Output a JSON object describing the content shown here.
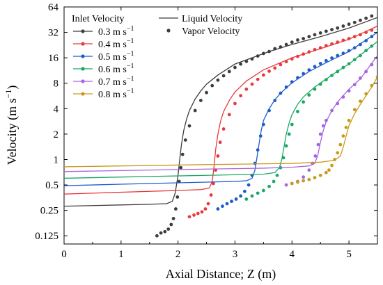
{
  "chart_data": {
    "type": "line",
    "xlabel": "Axial Distance; Z (m)",
    "ylabel": "Velocity (m s",
    "ylabel_sup": "−1",
    "ylabel_close": ")",
    "y_scale": "log2",
    "xlim": [
      0,
      5.5
    ],
    "ylim": [
      0.1,
      64
    ],
    "x_ticks": [
      "0",
      "1",
      "2",
      "3",
      "4",
      "5"
    ],
    "x_tick_values": [
      0,
      1,
      2,
      3,
      4,
      5
    ],
    "y_ticks": [
      "0.125",
      "0.25",
      "0.5",
      "1",
      "2",
      "4",
      "8",
      "16",
      "32",
      "64"
    ],
    "y_tick_values": [
      0.125,
      0.25,
      0.5,
      1,
      2,
      4,
      8,
      16,
      32,
      64
    ],
    "grid": false,
    "legend": {
      "placement": "top-left",
      "header_left": "Inlet Velocity",
      "header_liquid": "Liquid Velocity",
      "header_vapor": "Vapor Velocity",
      "unit_base": "m s",
      "unit_sup": "−1"
    },
    "series": [
      {
        "name": "0.3",
        "color": "#3d3d3d",
        "liquid": {
          "x": [
            0,
            0.5,
            1,
            1.5,
            1.8,
            1.9,
            1.95,
            2.0,
            2.03,
            2.06,
            2.1,
            2.15,
            2.2,
            2.3,
            2.4,
            2.5,
            2.7,
            3.0,
            3.3,
            3.6,
            4.0,
            4.5,
            5.0,
            5.5
          ],
          "y": [
            0.28,
            0.285,
            0.29,
            0.295,
            0.3,
            0.32,
            0.4,
            0.65,
            1.0,
            1.5,
            2.2,
            3.0,
            3.8,
            5.2,
            6.5,
            7.8,
            10.0,
            13.5,
            16.0,
            19.0,
            23.0,
            28.5,
            36.0,
            48.0
          ]
        },
        "vapor": {
          "x": [
            1.63,
            1.7,
            1.77,
            1.83,
            1.88,
            1.92,
            1.96,
            1.99,
            2.02,
            2.05,
            2.08,
            2.13,
            2.2,
            2.3,
            2.4,
            2.5,
            2.6,
            2.7,
            2.8,
            2.9,
            3.0,
            3.1,
            3.2,
            3.3,
            3.4,
            3.5,
            3.6,
            3.7,
            3.8,
            3.9,
            4.0,
            4.1,
            4.2,
            4.3,
            4.4,
            4.5,
            4.6,
            4.7,
            4.8,
            4.9,
            5.0,
            5.1,
            5.2,
            5.3,
            5.4
          ],
          "y": [
            0.125,
            0.135,
            0.14,
            0.15,
            0.17,
            0.2,
            0.26,
            0.36,
            0.55,
            0.8,
            1.15,
            1.7,
            2.5,
            3.8,
            5.0,
            6.2,
            7.5,
            8.7,
            9.8,
            11.0,
            12.3,
            13.5,
            14.5,
            15.5,
            16.8,
            18.0,
            19.0,
            20.5,
            21.5,
            23.0,
            24.5,
            26.0,
            27.0,
            28.5,
            30.0,
            31.5,
            33.0,
            34.5,
            36.0,
            38.0,
            40.0,
            42.0,
            44.5,
            47.0,
            50.0
          ]
        }
      },
      {
        "name": "0.4",
        "color": "#e8393d",
        "liquid": {
          "x": [
            0,
            0.5,
            1,
            1.5,
            2.0,
            2.4,
            2.55,
            2.6,
            2.63,
            2.66,
            2.7,
            2.75,
            2.8,
            2.9,
            3.0,
            3.2,
            3.5,
            4.0,
            4.5,
            5.0,
            5.5
          ],
          "y": [
            0.39,
            0.4,
            0.41,
            0.42,
            0.43,
            0.44,
            0.46,
            0.55,
            0.8,
            1.3,
            2.0,
            2.9,
            3.7,
            5.0,
            6.3,
            8.5,
            11.5,
            16.0,
            20.5,
            26.5,
            38.0
          ]
        },
        "vapor": {
          "x": [
            2.2,
            2.28,
            2.35,
            2.42,
            2.48,
            2.53,
            2.58,
            2.62,
            2.66,
            2.7,
            2.74,
            2.8,
            2.9,
            3.0,
            3.1,
            3.2,
            3.3,
            3.4,
            3.5,
            3.6,
            3.7,
            3.8,
            3.9,
            4.0,
            4.1,
            4.2,
            4.3,
            4.4,
            4.5,
            4.6,
            4.7,
            4.8,
            4.9,
            5.0,
            5.1,
            5.2,
            5.3,
            5.4
          ],
          "y": [
            0.21,
            0.22,
            0.23,
            0.24,
            0.26,
            0.3,
            0.38,
            0.52,
            0.75,
            1.1,
            1.6,
            2.3,
            3.4,
            4.6,
            5.7,
            6.8,
            7.8,
            8.9,
            10.0,
            11.1,
            12.1,
            13.3,
            14.4,
            15.5,
            16.6,
            17.7,
            18.8,
            20.0,
            21.0,
            22.3,
            23.4,
            24.5,
            25.8,
            27.0,
            28.5,
            30.0,
            32.0,
            34.0
          ]
        }
      },
      {
        "name": "0.5",
        "color": "#1e5ccc",
        "liquid": {
          "x": [
            0,
            0.5,
            1,
            1.5,
            2.0,
            2.5,
            3.0,
            3.2,
            3.3,
            3.35,
            3.38,
            3.42,
            3.46,
            3.5,
            3.6,
            3.7,
            3.8,
            4.0,
            4.3,
            4.6,
            5.0,
            5.5
          ],
          "y": [
            0.49,
            0.5,
            0.51,
            0.52,
            0.53,
            0.54,
            0.55,
            0.56,
            0.6,
            0.75,
            1.0,
            1.5,
            2.2,
            2.9,
            4.0,
            5.1,
            6.1,
            8.1,
            11.0,
            14.0,
            19.0,
            32.0
          ]
        },
        "vapor": {
          "x": [
            2.7,
            2.78,
            2.86,
            2.94,
            3.02,
            3.1,
            3.17,
            3.24,
            3.3,
            3.35,
            3.4,
            3.45,
            3.5,
            3.6,
            3.7,
            3.8,
            3.9,
            4.0,
            4.1,
            4.2,
            4.3,
            4.4,
            4.5,
            4.6,
            4.7,
            4.8,
            4.9,
            5.0,
            5.1,
            5.2,
            5.3,
            5.4
          ],
          "y": [
            0.26,
            0.28,
            0.3,
            0.32,
            0.34,
            0.37,
            0.42,
            0.5,
            0.65,
            0.9,
            1.3,
            1.9,
            2.6,
            3.8,
            5.0,
            6.1,
            7.2,
            8.3,
            9.3,
            10.4,
            11.5,
            12.6,
            13.7,
            14.8,
            15.9,
            17.0,
            18.1,
            19.4,
            21.0,
            23.0,
            25.5,
            28.5
          ]
        }
      },
      {
        "name": "0.6",
        "color": "#1aa864",
        "liquid": {
          "x": [
            0,
            0.5,
            1,
            1.5,
            2.0,
            2.5,
            3.0,
            3.5,
            3.7,
            3.78,
            3.82,
            3.86,
            3.9,
            3.95,
            4.0,
            4.1,
            4.2,
            4.4,
            4.7,
            5.0,
            5.5
          ],
          "y": [
            0.6,
            0.61,
            0.62,
            0.63,
            0.64,
            0.65,
            0.66,
            0.67,
            0.7,
            0.8,
            1.0,
            1.4,
            2.0,
            2.7,
            3.4,
            4.5,
            5.5,
            7.2,
            10.0,
            13.5,
            25.0
          ]
        },
        "vapor": {
          "x": [
            3.2,
            3.3,
            3.4,
            3.5,
            3.6,
            3.68,
            3.74,
            3.8,
            3.85,
            3.9,
            3.95,
            4.0,
            4.1,
            4.2,
            4.3,
            4.4,
            4.5,
            4.6,
            4.7,
            4.8,
            4.9,
            5.0,
            5.1,
            5.2,
            5.3,
            5.4
          ],
          "y": [
            0.34,
            0.37,
            0.4,
            0.43,
            0.48,
            0.55,
            0.65,
            0.8,
            1.05,
            1.45,
            2.0,
            2.6,
            3.7,
            4.8,
            5.8,
            6.8,
            7.8,
            8.8,
            9.9,
            11.0,
            12.3,
            13.6,
            15.2,
            17.0,
            19.5,
            22.0
          ]
        }
      },
      {
        "name": "0.7",
        "color": "#a764e0",
        "liquid": {
          "x": [
            0,
            0.5,
            1,
            1.5,
            2.0,
            2.5,
            3.0,
            3.5,
            4.0,
            4.3,
            4.4,
            4.45,
            4.5,
            4.55,
            4.6,
            4.7,
            4.8,
            5.0,
            5.2,
            5.5
          ],
          "y": [
            0.72,
            0.73,
            0.74,
            0.75,
            0.76,
            0.77,
            0.78,
            0.79,
            0.81,
            0.84,
            0.9,
            1.1,
            1.6,
            2.2,
            2.8,
            3.8,
            4.8,
            6.8,
            9.0,
            17.0
          ]
        },
        "vapor": {
          "x": [
            3.9,
            4.0,
            4.1,
            4.2,
            4.3,
            4.36,
            4.41,
            4.46,
            4.5,
            4.55,
            4.6,
            4.7,
            4.8,
            4.9,
            5.0,
            5.1,
            5.2,
            5.3,
            5.4,
            5.5
          ],
          "y": [
            0.5,
            0.52,
            0.55,
            0.62,
            0.75,
            0.9,
            1.1,
            1.5,
            2.0,
            2.5,
            2.9,
            3.8,
            4.6,
            5.5,
            6.5,
            7.7,
            9.2,
            11.0,
            13.3,
            16.0
          ]
        }
      },
      {
        "name": "0.8",
        "color": "#c99a1a",
        "liquid": {
          "x": [
            0,
            0.5,
            1,
            1.5,
            2.0,
            2.5,
            3.0,
            3.5,
            4.0,
            4.5,
            4.75,
            4.85,
            4.9,
            4.95,
            5.0,
            5.1,
            5.2,
            5.3,
            5.4,
            5.5
          ],
          "y": [
            0.82,
            0.83,
            0.84,
            0.85,
            0.86,
            0.87,
            0.88,
            0.89,
            0.9,
            0.93,
            0.98,
            1.1,
            1.4,
            1.9,
            2.5,
            3.5,
            4.5,
            5.7,
            7.2,
            9.5
          ]
        },
        "vapor": {
          "x": [
            4.0,
            4.1,
            4.2,
            4.3,
            4.4,
            4.5,
            4.6,
            4.65,
            4.7,
            4.75,
            4.8,
            4.85,
            4.9,
            4.95,
            5.0,
            5.1,
            5.2,
            5.3,
            5.4,
            5.5
          ],
          "y": [
            0.52,
            0.54,
            0.56,
            0.58,
            0.61,
            0.65,
            0.7,
            0.75,
            0.85,
            1.0,
            1.2,
            1.5,
            1.9,
            2.4,
            2.9,
            3.9,
            4.9,
            6.0,
            7.5,
            9.5
          ]
        }
      }
    ]
  }
}
